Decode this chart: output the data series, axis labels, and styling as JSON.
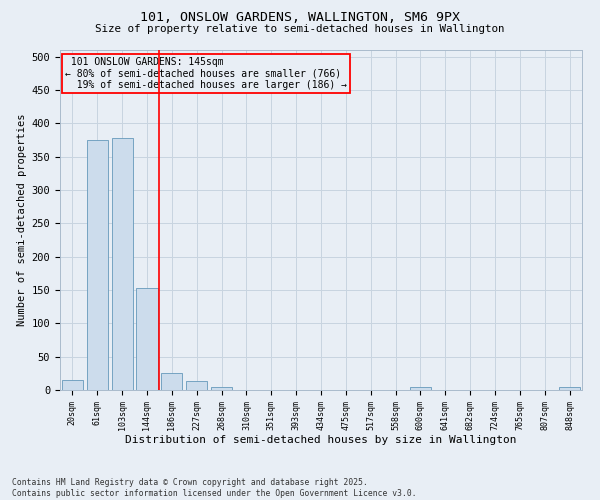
{
  "title1": "101, ONSLOW GARDENS, WALLINGTON, SM6 9PX",
  "title2": "Size of property relative to semi-detached houses in Wallington",
  "xlabel": "Distribution of semi-detached houses by size in Wallington",
  "ylabel": "Number of semi-detached properties",
  "property_label": "101 ONSLOW GARDENS: 145sqm",
  "pct_smaller": 80,
  "count_smaller": 766,
  "pct_larger": 19,
  "count_larger": 186,
  "bin_labels": [
    "20sqm",
    "61sqm",
    "103sqm",
    "144sqm",
    "186sqm",
    "227sqm",
    "268sqm",
    "310sqm",
    "351sqm",
    "393sqm",
    "434sqm",
    "475sqm",
    "517sqm",
    "558sqm",
    "600sqm",
    "641sqm",
    "682sqm",
    "724sqm",
    "765sqm",
    "807sqm",
    "848sqm"
  ],
  "bar_values": [
    15,
    375,
    378,
    153,
    25,
    13,
    5,
    0,
    0,
    0,
    0,
    0,
    0,
    0,
    5,
    0,
    0,
    0,
    0,
    0,
    5
  ],
  "bar_color": "#ccdcec",
  "bar_edge_color": "#6699bb",
  "grid_color": "#c8d4e0",
  "vline_color": "red",
  "vline_position": 3,
  "annotation_box_color": "red",
  "background_color": "#e8eef5",
  "ylim": [
    0,
    510
  ],
  "yticks": [
    0,
    50,
    100,
    150,
    200,
    250,
    300,
    350,
    400,
    450,
    500
  ],
  "footer": "Contains HM Land Registry data © Crown copyright and database right 2025.\nContains public sector information licensed under the Open Government Licence v3.0."
}
